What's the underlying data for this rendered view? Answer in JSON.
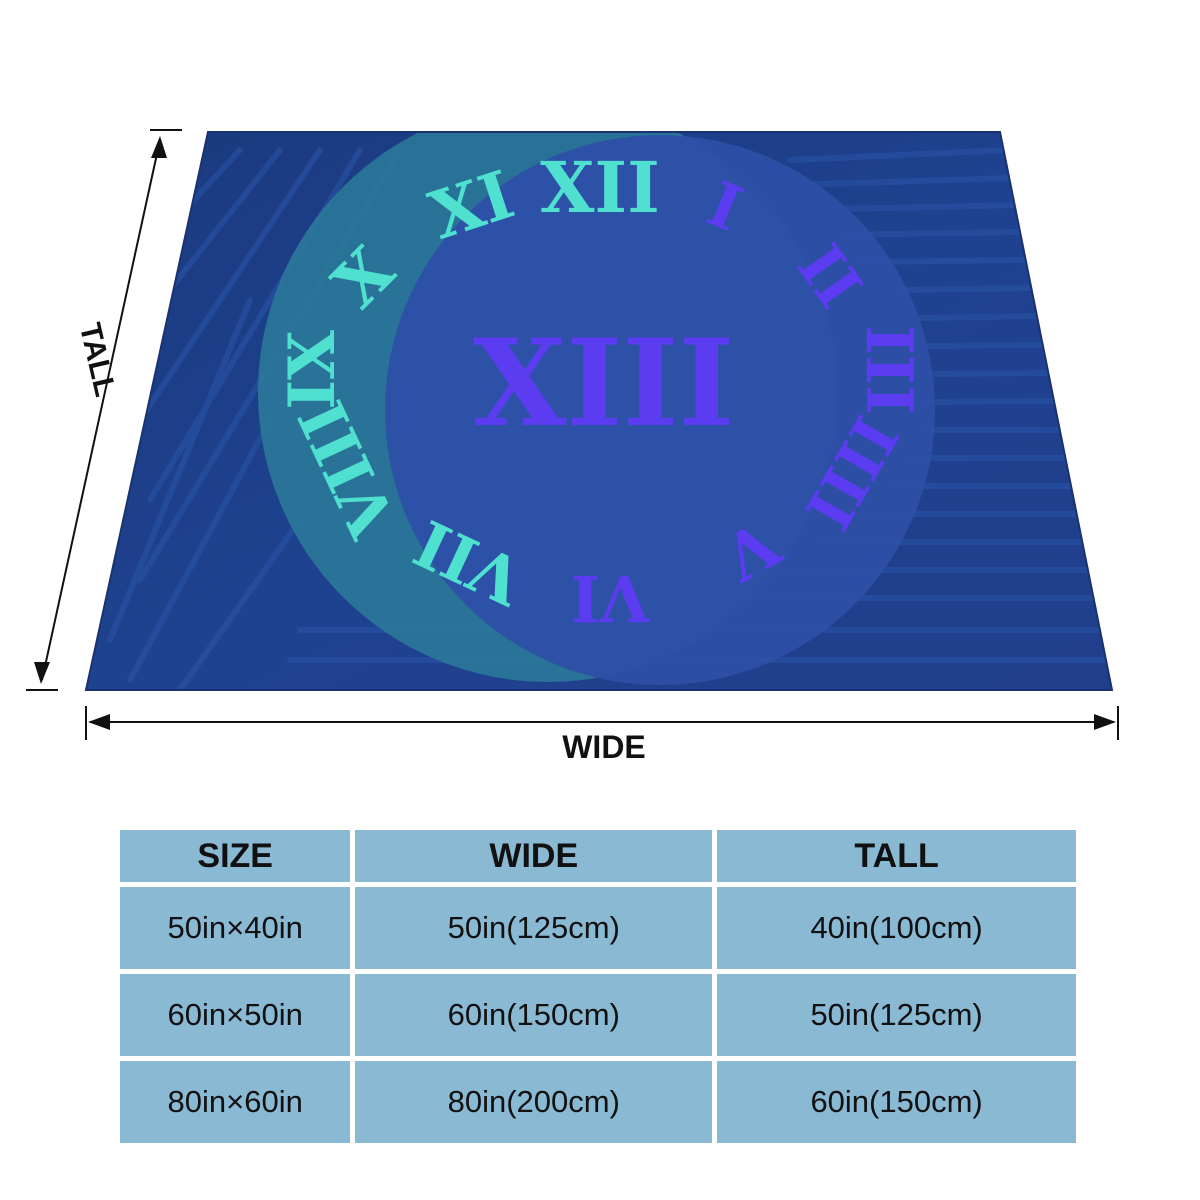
{
  "dimension_labels": {
    "height": "TALL",
    "width": "WIDE"
  },
  "blanket_print": {
    "numerals": [
      "XI",
      "XII",
      "I",
      "II",
      "X",
      "XIII",
      "III",
      "IX",
      "VIII",
      "IIII",
      "VII",
      "VI",
      "V"
    ],
    "colors": {
      "background": "#1e3f8a",
      "inner_disc": "#2d4fa6",
      "outer_ring": "#2b7a9a",
      "teal_numeral": "#4fe0cf",
      "violet_numeral": "#5b3cf0"
    }
  },
  "size_table": {
    "headers": [
      "SIZE",
      "WIDE",
      "TALL"
    ],
    "rows": [
      [
        "50in×40in",
        "50in(125cm)",
        "40in(100cm)"
      ],
      [
        "60in×50in",
        "60in(150cm)",
        "50in(125cm)"
      ],
      [
        "80in×60in",
        "80in(200cm)",
        "60in(150cm)"
      ]
    ]
  }
}
